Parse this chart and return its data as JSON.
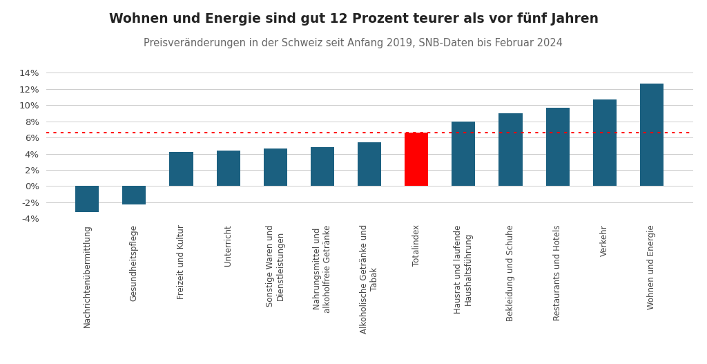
{
  "title": "Wohnen und Energie sind gut 12 Prozent teurer als vor fünf Jahren",
  "subtitle": "Preisveränderungen in der Schweiz seit Anfang 2019, SNB-Daten bis Februar 2024",
  "categories": [
    "Nachrichtenübermittlung",
    "Gesundheitspflege",
    "Freizeit und Kultur",
    "Unterricht",
    "Sonstige Waren und\nDienstleistungen",
    "Nahrungsmittel und\nalkoholfreie Getränke",
    "Alkoholische Getränke und\nTabak",
    "Totalindex",
    "Hausrat und laufende\nHaushaltsführung",
    "Bekleidung und Schuhe",
    "Restaurants und Hotels",
    "Verkehr",
    "Wohnen und Energie"
  ],
  "values": [
    -3.2,
    -2.3,
    4.2,
    4.4,
    4.6,
    4.8,
    5.4,
    6.6,
    8.0,
    9.0,
    9.7,
    10.7,
    12.7
  ],
  "bar_colors": [
    "#1b6080",
    "#1b6080",
    "#1b6080",
    "#1b6080",
    "#1b6080",
    "#1b6080",
    "#1b6080",
    "#ff0000",
    "#1b6080",
    "#1b6080",
    "#1b6080",
    "#1b6080",
    "#1b6080"
  ],
  "reference_line_y": 6.6,
  "reference_line_color": "#ff0000",
  "ylim": [
    -4,
    14
  ],
  "yticks": [
    -4,
    -2,
    0,
    2,
    4,
    6,
    8,
    10,
    12,
    14
  ],
  "ytick_labels": [
    "-4%",
    "-2%",
    "0%",
    "2%",
    "4%",
    "6%",
    "8%",
    "10%",
    "12%",
    "14%"
  ],
  "background_color": "#ffffff",
  "grid_color": "#cccccc",
  "title_fontsize": 13.5,
  "subtitle_fontsize": 10.5,
  "bar_width": 0.5,
  "title_color": "#222222",
  "subtitle_color": "#666666",
  "tick_label_color": "#444444"
}
